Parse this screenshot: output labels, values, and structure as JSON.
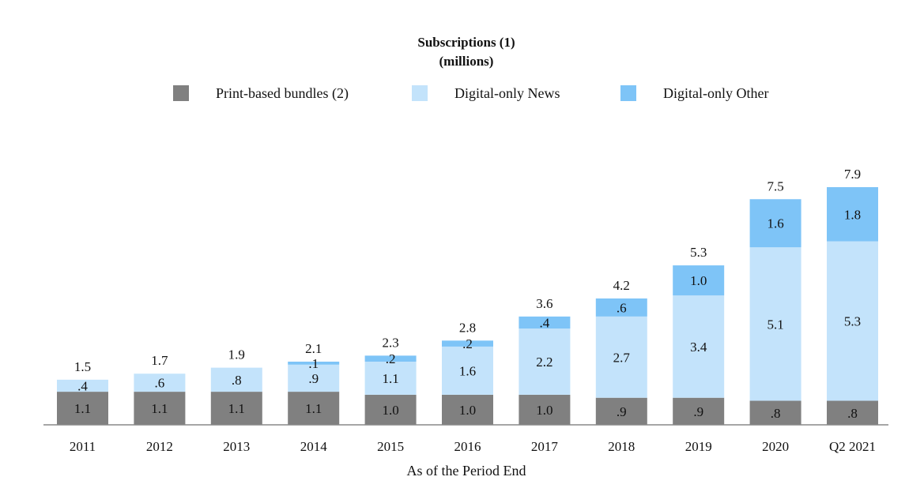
{
  "chart_data": {
    "type": "bar",
    "stacked": true,
    "title": "Subscriptions (1)",
    "subtitle": "(millions)",
    "xlabel": "As of the Period End",
    "ylabel": "",
    "categories": [
      "2011",
      "2012",
      "2013",
      "2014",
      "2015",
      "2016",
      "2017",
      "2018",
      "2019",
      "2020",
      "Q2 2021"
    ],
    "series": [
      {
        "name": "Print-based bundles (2)",
        "color": "#808080",
        "values": [
          1.1,
          1.1,
          1.1,
          1.1,
          1.0,
          1.0,
          1.0,
          0.9,
          0.9,
          0.8,
          0.8
        ],
        "labels": [
          "1.1",
          "1.1",
          "1.1",
          "1.1",
          "1.0",
          "1.0",
          "1.0",
          ".9",
          ".9",
          ".8",
          ".8"
        ]
      },
      {
        "name": "Digital-only News",
        "color": "#c3e3fb",
        "values": [
          0.4,
          0.6,
          0.8,
          0.9,
          1.1,
          1.6,
          2.2,
          2.7,
          3.4,
          5.1,
          5.3
        ],
        "labels": [
          ".4",
          ".6",
          ".8",
          ".9",
          "1.1",
          "1.6",
          "2.2",
          "2.7",
          "3.4",
          "5.1",
          "5.3"
        ]
      },
      {
        "name": "Digital-only Other",
        "color": "#7ec4f7",
        "values": [
          0,
          0,
          0,
          0.1,
          0.2,
          0.2,
          0.4,
          0.6,
          1.0,
          1.6,
          1.8
        ],
        "labels": [
          "",
          "",
          "",
          ".1",
          ".2",
          ".2",
          ".4",
          ".6",
          "1.0",
          "1.6",
          "1.8"
        ]
      }
    ],
    "totals": [
      "1.5",
      "1.7",
      "1.9",
      "2.1",
      "2.3",
      "2.8",
      "3.6",
      "4.2",
      "5.3",
      "7.5",
      "7.9"
    ],
    "legend_position": "top",
    "grid": false
  }
}
